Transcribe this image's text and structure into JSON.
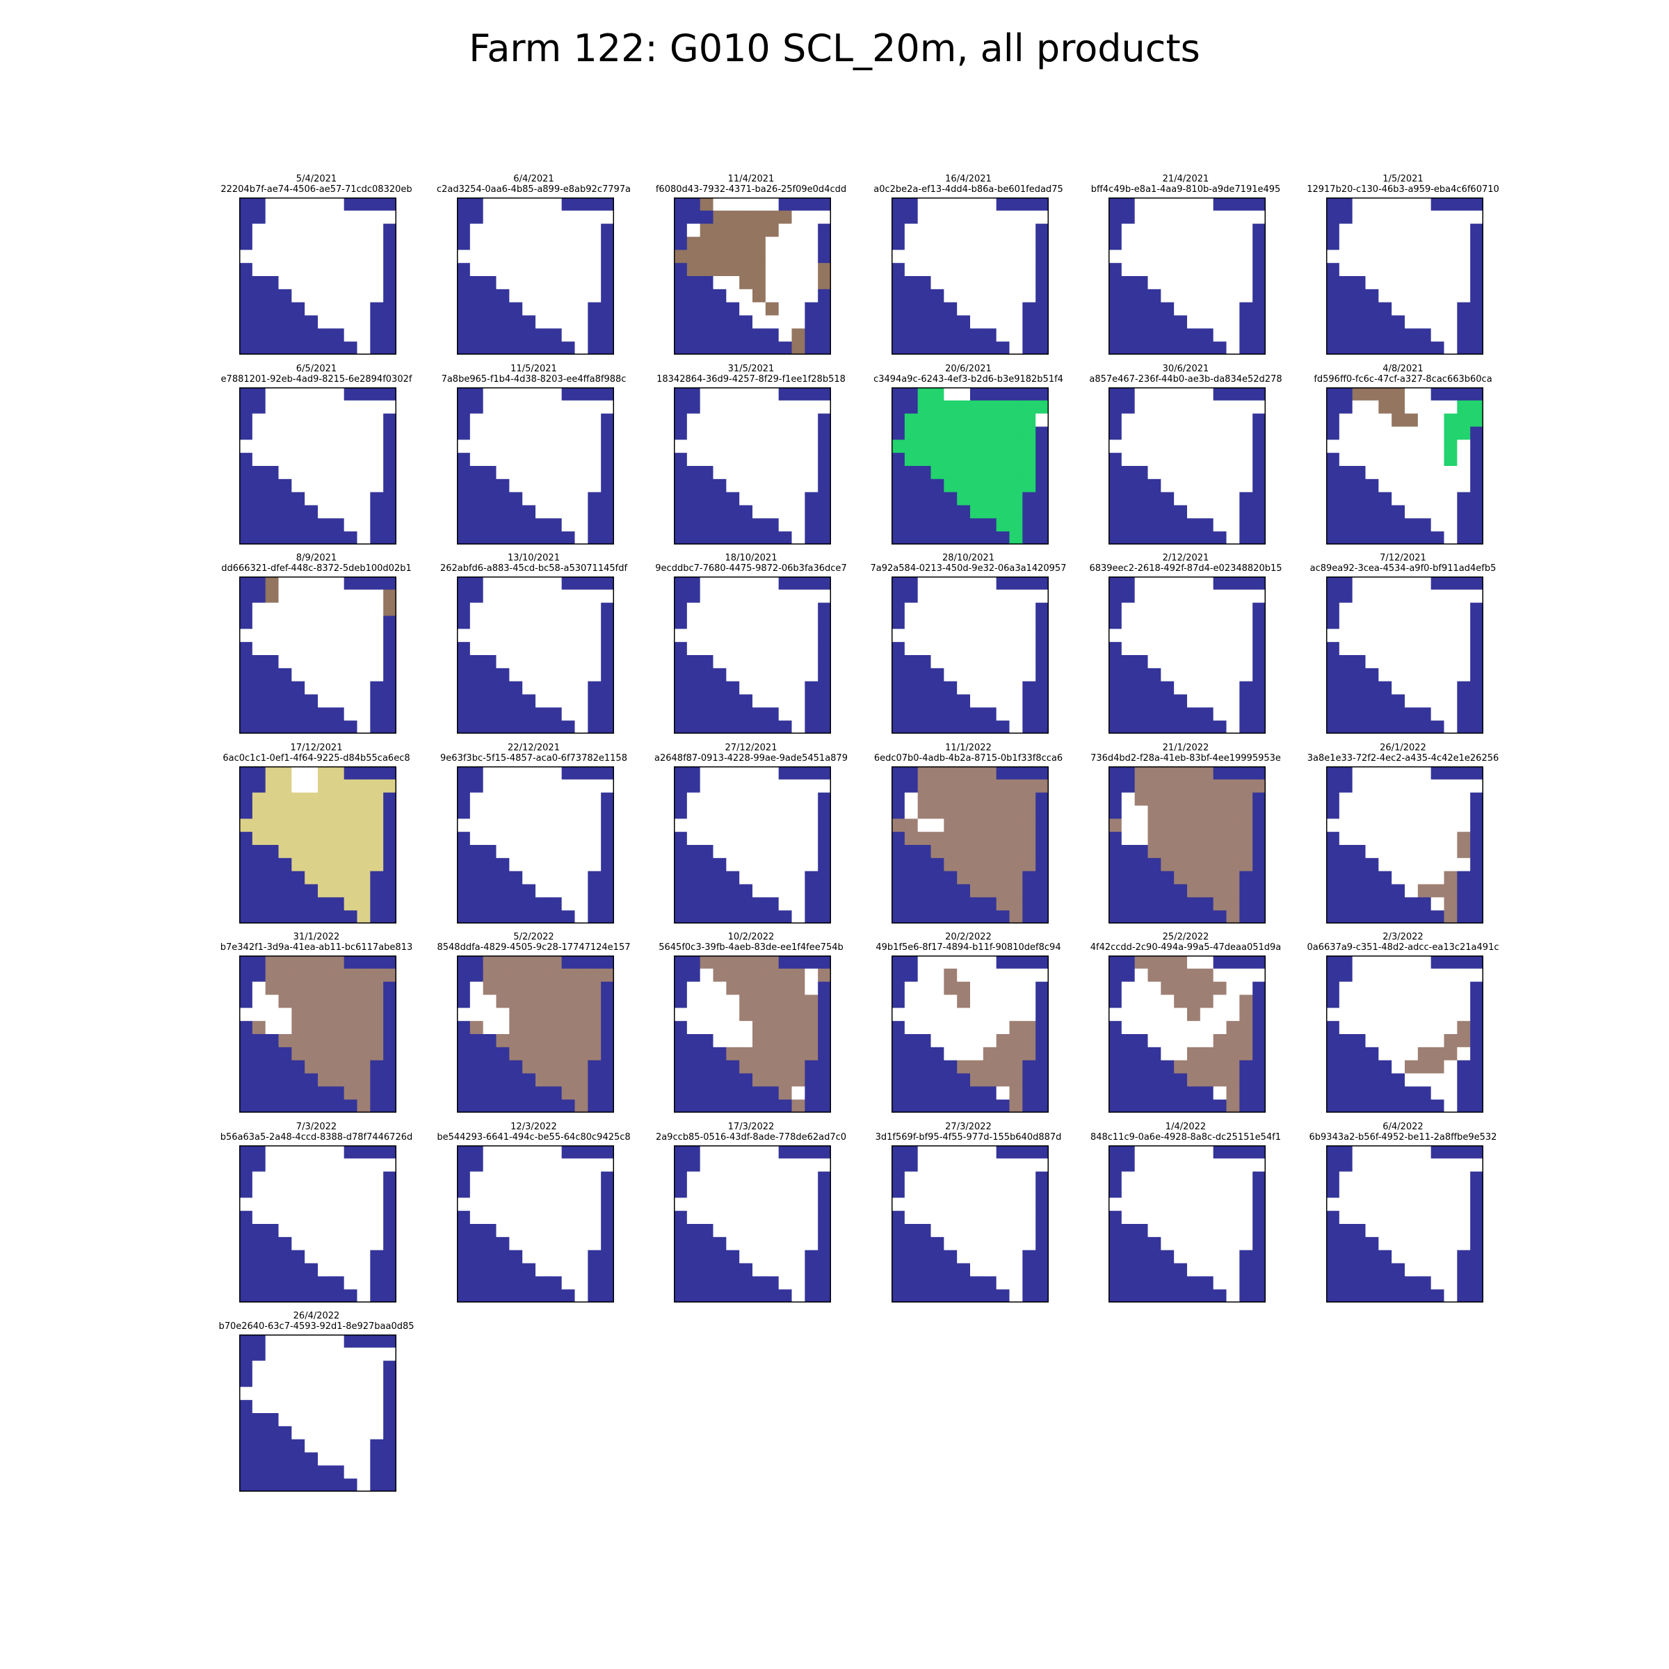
{
  "title": "Farm 122: G010 SCL_20m, all products",
  "colors": {
    "water": "#34349a",
    "field": "#ffffff",
    "brown": "#937560",
    "brown_light": "#9e7f73",
    "green": "#22d36e",
    "yellow": "#dcd189"
  },
  "chart_data": {
    "type": "heatmap",
    "layout": {
      "columns": 6
    },
    "grid": {
      "rows": 12,
      "cols": 12
    },
    "base_mask": [
      "WWFFFFFFWWWW",
      "WWFFFFFFFFFF",
      "WFFFFFFFFFFW",
      "WFFFFFFFFFFW",
      "FFFFFFFFFFFW",
      "WFFFFFFFFFFW",
      "WWWFFFFFFFFW",
      "WWWWFFFFFFFW",
      "WWWWWFFFFFWW",
      "WWWWWWFFFFWW",
      "WWWWWWWWFFWW",
      "WWWWWWWWWFWW"
    ],
    "panels": [
      {
        "date": "5/4/2021",
        "id": "22204b7f-ae74-4506-ae57-71cdc08320eb"
      },
      {
        "date": "6/4/2021",
        "id": "c2ad3254-0aa6-4b85-a899-e8ab92c7797a"
      },
      {
        "date": "11/4/2021",
        "id": "f6080d43-7932-4371-ba26-25f09e0d4cdd",
        "overlay": "brown",
        "rows": [
          "WWBFFFFFWWWW",
          "WWWBBBBBBFFF",
          "WFBBBBBBFFFW",
          "WBBBBBBFFFFW",
          "BBBBBBBFFFFW",
          "WBBBBBBFFFFB",
          "WWWFFBBFFFFB",
          "WWWWFFBFFFFW",
          "WWWWWFFBFFWW",
          "WWWWWWFFFFWW",
          "WWWWWWWWFBWW",
          "WWWWWWWWWBWW"
        ]
      },
      {
        "date": "16/4/2021",
        "id": "a0c2be2a-ef13-4dd4-b86a-be601fedad75"
      },
      {
        "date": "21/4/2021",
        "id": "bff4c49b-e8a1-4aa9-810b-a9de7191e495"
      },
      {
        "date": "1/5/2021",
        "id": "12917b20-c130-46b3-a959-eba4c6f60710"
      },
      {
        "date": "6/5/2021",
        "id": "e7881201-92eb-4ad9-8215-6e2894f0302f"
      },
      {
        "date": "11/5/2021",
        "id": "7a8be965-f1b4-4d38-8203-ee4ffa8f988c"
      },
      {
        "date": "31/5/2021",
        "id": "18342864-36d9-4257-8f29-f1ee1f28b518"
      },
      {
        "date": "20/6/2021",
        "id": "c3494a9c-6243-4ef3-b2d6-b3e9182b51f4",
        "overlay": "green",
        "rows": [
          "WWBBFFWWWWWW",
          "WWBBBBBBBBBB",
          "WBBBBBBBBBBF",
          "WBBBBBBBBBBW",
          "BBBBBBBBBBBW",
          "WBBBBBBBBBBW",
          "WWWBBBBBBBBW",
          "WWWWBBBBBBBW",
          "WWWWWBBBBBWW",
          "WWWWWWBBBBWW",
          "WWWWWWWWBBWW",
          "WWWWWWWWWBWW"
        ]
      },
      {
        "date": "30/6/2021",
        "id": "a857e467-236f-44b0-ae3b-da834e52d278"
      },
      {
        "date": "4/8/2021",
        "id": "fd596ff0-fc6c-47cf-a327-8cac663b60ca",
        "overlay": "brown",
        "rows": [
          "WWBBBBFFWWWW",
          "WWFFBBFFFFGG",
          "WFFFFBBFFGGG",
          "WFFFFFFFFGGW",
          "FFFFFFFFFGFW",
          "WFFFFFFFFGFW",
          "WWWFFFFFFFFW",
          "WWWWFFFFFFFW",
          "WWWWWFFFFFWW",
          "WWWWWWFFFFWW",
          "WWWWWWWWFFWW",
          "WWWWWWWWWFWW"
        ]
      },
      {
        "date": "8/9/2021",
        "id": "dd666321-dfef-448c-8372-5deb100d02b1",
        "overlay": "brown",
        "rows": [
          "WWBFFFFFWWWW",
          "WWBFFFFFFFFB",
          "WFFFFFFFFFFB",
          "WFFFFFFFFFFW",
          "FFFFFFFFFFFW",
          "WFFFFFFFFFFW",
          "WWWFFFFFFFFW",
          "WWWWFFFFFFFW",
          "WWWWWFFFFFWW",
          "WWWWWWFFFFWW",
          "WWWWWWWWFFWW",
          "WWWWWWWWWFWW"
        ]
      },
      {
        "date": "13/10/2021",
        "id": "262abfd6-a883-45cd-bc58-a53071145fdf"
      },
      {
        "date": "18/10/2021",
        "id": "9ecddbc7-7680-4475-9872-06b3fa36dce7"
      },
      {
        "date": "28/10/2021",
        "id": "7a92a584-0213-450d-9e32-06a3a1420957"
      },
      {
        "date": "2/12/2021",
        "id": "6839eec2-2618-492f-87d4-e02348820b15"
      },
      {
        "date": "7/12/2021",
        "id": "ac89ea92-3cea-4534-a9f0-bf911ad4efb5"
      },
      {
        "date": "17/12/2021",
        "id": "6ac0c1c1-0ef1-4f64-9225-d84b55ca6ec8",
        "overlay": "yellow",
        "rows": [
          "WWBBFFBBWWWW",
          "WWBBFFBBBBBB",
          "WBBBBBBBBBBW",
          "WBBBBBBBBBBW",
          "BBBBBBBBBBBW",
          "WBBBBBBBBBBW",
          "WWWBBBBBBBBW",
          "WWWWBBBBBBBW",
          "WWWWWBBBBBWW",
          "WWWWWWBBBBWW",
          "WWWWWWWWBBWW",
          "WWWWWWWWWBWW"
        ]
      },
      {
        "date": "22/12/2021",
        "id": "9e63f3bc-5f15-4857-aca0-6f73782e1158"
      },
      {
        "date": "27/12/2021",
        "id": "a2648f87-0913-4228-99ae-9ade5451a879"
      },
      {
        "date": "11/1/2022",
        "id": "6edc07b0-4adb-4b2a-8715-0b1f33f8cca6",
        "overlay": "brown_light",
        "rows": [
          "WWBBBBBBWWWW",
          "WWBBBBBBBBBB",
          "WFBBBBBBBBBW",
          "WFBBBBBBBBBW",
          "BBFFBBBBBBBW",
          "WBBBBBBBBBBW",
          "WWWBBBBBBBBW",
          "WWWWBBBBBBBW",
          "WWWWWBBBBBWW",
          "WWWWWWBBBBWW",
          "WWWWWWWWBBWW",
          "WWWWWWWWWBWW"
        ]
      },
      {
        "date": "21/1/2022",
        "id": "736d4bd2-f28a-41eb-83bf-4ee19995953e",
        "overlay": "brown_light",
        "rows": [
          "WWBBBBBBWWWW",
          "WWBBBBBBBBBB",
          "WFBBBBBBBBBW",
          "WFFBBBBBBBBW",
          "BFFBBBBBBBBW",
          "WFFBBBBBBBBW",
          "WWWBBBBBBBBW",
          "WWWWBBBBBBBW",
          "WWWWWBBBBBWW",
          "WWWWWWBBBBWW",
          "WWWWWWWWBBWW",
          "WWWWWWWWWBWW"
        ]
      },
      {
        "date": "26/1/2022",
        "id": "3a8e1e33-72f2-4ec2-a435-4c42e1e26256",
        "overlay": "brown_light",
        "rows": [
          "WWFFFFFFWWWW",
          "WWFFFFFFFFFF",
          "WFFFFFFFFFFW",
          "WFFFFFFFFFFW",
          "FFFFFFFFFFFW",
          "WFFFFFFFFFBW",
          "WWWFFFFFFFBW",
          "WWWWFFFFFFFW",
          "WWWWWFFFFBWW",
          "WWWWWWFBBBWW",
          "WWWWWWWWFBWW",
          "WWWWWWWWWBWW"
        ]
      },
      {
        "date": "31/1/2022",
        "id": "b7e342f1-3d9a-41ea-ab11-bc6117abe813",
        "overlay": "brown_light",
        "rows": [
          "WWBBBBBBWWWW",
          "WWBBBBBBBBBB",
          "WFBBBBBBBBBW",
          "WFFBBBBBBBBW",
          "FFFFBBBBBBBW",
          "WBFFBBBBBBBW",
          "WWWBBBBBBBBW",
          "WWWWBBBBBBBW",
          "WWWWWBBBBBWW",
          "WWWWWWBBBBWW",
          "WWWWWWWWBBWW",
          "WWWWWWWWWBWW"
        ]
      },
      {
        "date": "5/2/2022",
        "id": "8548ddfa-4829-4505-9c28-17747124e157",
        "overlay": "brown_light",
        "rows": [
          "WWBBBBBBWWWW",
          "WWBBBBBBBBBB",
          "WFBBBBBBBBBW",
          "WFFBBBBBBBBW",
          "FFFFBBBBBBBW",
          "WBFFBBBBBBBW",
          "WWWBBBBBBBBW",
          "WWWWBBBBBBBW",
          "WWWWWBBBBBWW",
          "WWWWWWBBBBWW",
          "WWWWWWWWBBWW",
          "WWWWWWWWWBWW"
        ]
      },
      {
        "date": "10/2/2022",
        "id": "5645f0c3-39fb-4aeb-83de-ee1f4fee754b",
        "overlay": "brown_light",
        "rows": [
          "WWBBBBBBWWWW",
          "WWFBBBBBBBFB",
          "WFFFBBBBBBFW",
          "WFFFFBBBBBBW",
          "FFFFFBBBBBBW",
          "WFFFFFBBBBBW",
          "WWWFFFBBBBBW",
          "WWWWBBBBBBBW",
          "WWWWWBBBBBWW",
          "WWWWWWBBBBWW",
          "WWWWWWWWBFWW",
          "WWWWWWWWWBWW"
        ]
      },
      {
        "date": "20/2/2022",
        "id": "49b1f5e6-8f17-4894-b11f-90810def8c94",
        "overlay": "brown_light",
        "rows": [
          "WWFFFFFFWWWW",
          "WWFFBFFFFFFF",
          "WFFFBBFFFFFW",
          "WFFFFBFFFFFW",
          "FFFFFFFFFFFW",
          "WFFFFFFFFBBW",
          "WWWFFFFFBBBW",
          "WWWWFFFBBBBW",
          "WWWWWBBBBBWW",
          "WWWWWWBBBBWW",
          "WWWWWWWWFBWW",
          "WWWWWWWWWBWW"
        ]
      },
      {
        "date": "25/2/2022",
        "id": "4f42ccdd-2c90-494a-99a5-47deaa051d9a",
        "overlay": "brown_light",
        "rows": [
          "WWBBBBFFWWWW",
          "WWFBBBBBFFFF",
          "WFFFBBBBBFFW",
          "WFFFFBBBFFBW",
          "FFFFFFBFFFBW",
          "WFFFFFFFFBBW",
          "WWWFFFFFBBBW",
          "WWWWFFBBBBBW",
          "WWWWWBBBBBWW",
          "WWWWWWBBBBWW",
          "WWWWWWWWFBWW",
          "WWWWWWWWWBWW"
        ]
      },
      {
        "date": "2/3/2022",
        "id": "0a6637a9-c351-48d2-adcc-ea13c21a491c",
        "overlay": "brown_light",
        "rows": [
          "WWFFFFFFWWWW",
          "WWFFFFFFFFFF",
          "WFFFFFFFFFFW",
          "WFFFFFFFFFFW",
          "FFFFFFFFFFFW",
          "WFFFFFFFFFBW",
          "WWWFFFFFFBBW",
          "WWWWFFFBBBFW",
          "WWWWWFBBBFWW",
          "WWWWWWFFFFWW",
          "WWWWWWWWFFWW",
          "WWWWWWWWWFWW"
        ]
      },
      {
        "date": "7/3/2022",
        "id": "b56a63a5-2a48-4ccd-8388-d78f7446726d"
      },
      {
        "date": "12/3/2022",
        "id": "be544293-6641-494c-be55-64c80c9425c8"
      },
      {
        "date": "17/3/2022",
        "id": "2a9ccb85-0516-43df-8ade-778de62ad7c0"
      },
      {
        "date": "27/3/2022",
        "id": "3d1f569f-bf95-4f55-977d-155b640d887d"
      },
      {
        "date": "1/4/2022",
        "id": "848c11c9-0a6e-4928-8a8c-dc25151e54f1"
      },
      {
        "date": "6/4/2022",
        "id": "6b9343a2-b56f-4952-be11-2a8ffbe9e532"
      },
      {
        "date": "26/4/2022",
        "id": "b70e2640-63c7-4593-92d1-8e927baa0d85"
      }
    ]
  }
}
